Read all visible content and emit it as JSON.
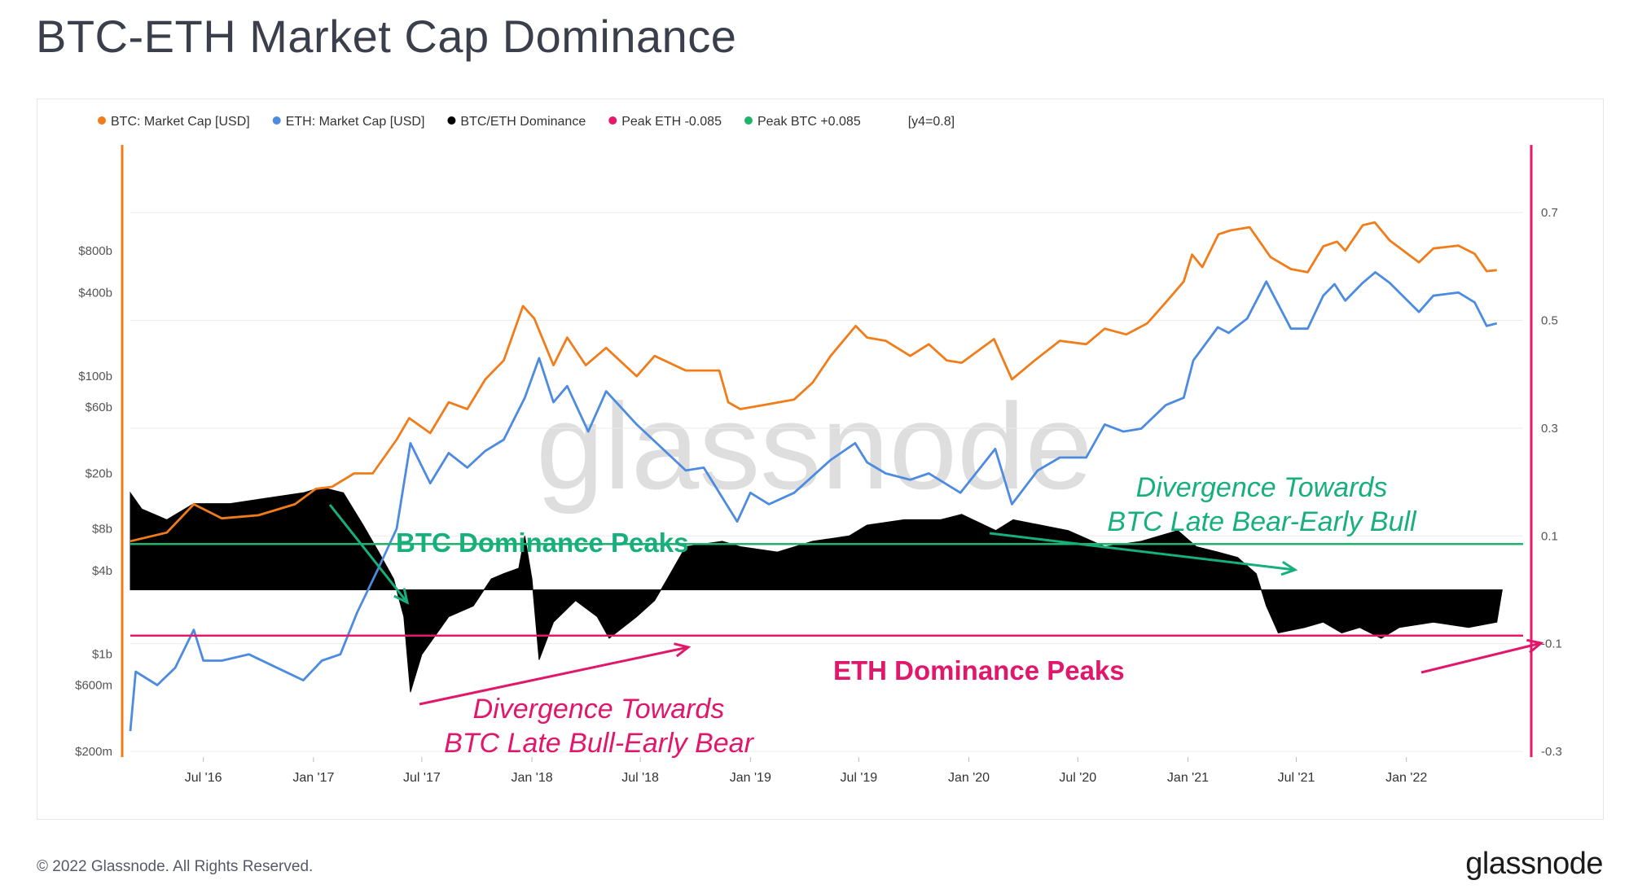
{
  "page": {
    "title": "BTC-ETH Market Cap Dominance",
    "copyright": "© 2022 Glassnode. All Rights Reserved.",
    "logo": "glassnode",
    "watermark": "glassnode"
  },
  "colors": {
    "btc": "#f07d1a",
    "eth": "#4c8be0",
    "dominance": "#000000",
    "peak_eth": "#e8176b",
    "peak_btc": "#1fb36b",
    "annotation_green": "#17b07c",
    "annotation_pink": "#e0176b"
  },
  "chart_data": {
    "type": "line",
    "title": "BTC-ETH Market Cap Dominance",
    "legend_position": "top-left",
    "legend": [
      {
        "label": "BTC: Market Cap [USD]",
        "color": "#f07d1a"
      },
      {
        "label": "ETH: Market Cap [USD]",
        "color": "#4c8be0"
      },
      {
        "label": "BTC/ETH Dominance",
        "color": "#000000"
      },
      {
        "label": "Peak ETH -0.085",
        "color": "#e8176b"
      },
      {
        "label": "Peak BTC +0.085",
        "color": "#1fb36b"
      },
      {
        "label": "[y4=0.8]",
        "color": ""
      }
    ],
    "x_axis": {
      "start": "2016-03-01",
      "end": "2022-07-15",
      "tick_labels": [
        "Jul '16",
        "Jan '17",
        "Jul '17",
        "Jan '18",
        "Jul '18",
        "Jan '19",
        "Jul '19",
        "Jan '20",
        "Jul '20",
        "Jan '21",
        "Jul '21",
        "Jan '22"
      ],
      "tick_dates": [
        "2016-07-01",
        "2017-01-01",
        "2017-07-01",
        "2018-01-01",
        "2018-07-01",
        "2019-01-01",
        "2019-07-01",
        "2020-01-01",
        "2020-07-01",
        "2021-01-01",
        "2021-07-01",
        "2022-01-01"
      ]
    },
    "y_left": {
      "scale": "log",
      "range": [
        200000000,
        2000000000000
      ],
      "ticks": [
        {
          "label": "$800b",
          "value": 800000000000
        },
        {
          "label": "$400b",
          "value": 400000000000
        },
        {
          "label": "$100b",
          "value": 100000000000
        },
        {
          "label": "$60b",
          "value": 60000000000
        },
        {
          "label": "$20b",
          "value": 20000000000
        },
        {
          "label": "$8b",
          "value": 8000000000
        },
        {
          "label": "$4b",
          "value": 4000000000
        },
        {
          "label": "$1b",
          "value": 1000000000
        },
        {
          "label": "$600m",
          "value": 600000000
        },
        {
          "label": "$200m",
          "value": 200000000
        }
      ]
    },
    "y_right": {
      "scale": "linear",
      "range": [
        -0.3,
        0.8
      ],
      "ticks": [
        {
          "label": "0.7",
          "value": 0.7
        },
        {
          "label": "0.5",
          "value": 0.5
        },
        {
          "label": "0.3",
          "value": 0.3
        },
        {
          "label": "0.1",
          "value": 0.1
        },
        {
          "label": "-0.1",
          "value": -0.1
        },
        {
          "label": "-0.3",
          "value": -0.3
        }
      ]
    },
    "reference_lines": [
      {
        "name": "Peak BTC +0.085",
        "value": 0.085,
        "color": "#1fb36b"
      },
      {
        "name": "Peak ETH -0.085",
        "value": -0.085,
        "color": "#e8176b"
      }
    ],
    "series": [
      {
        "name": "BTC: Market Cap [USD]",
        "axis": "left",
        "points": [
          [
            "2016-03-01",
            6500000000.0
          ],
          [
            "2016-05-01",
            7500000000.0
          ],
          [
            "2016-06-15",
            12000000000.0
          ],
          [
            "2016-08-01",
            9500000000.0
          ],
          [
            "2016-10-01",
            10000000000.0
          ],
          [
            "2016-12-01",
            12000000000.0
          ],
          [
            "2017-01-05",
            15500000000.0
          ],
          [
            "2017-02-01",
            16000000000.0
          ],
          [
            "2017-03-10",
            20000000000.0
          ],
          [
            "2017-04-10",
            20000000000.0
          ],
          [
            "2017-05-20",
            35000000000.0
          ],
          [
            "2017-06-10",
            50000000000.0
          ],
          [
            "2017-07-15",
            39000000000.0
          ],
          [
            "2017-08-15",
            65000000000.0
          ],
          [
            "2017-09-15",
            58000000000.0
          ],
          [
            "2017-10-15",
            95000000000.0
          ],
          [
            "2017-11-15",
            130000000000.0
          ],
          [
            "2017-12-17",
            320000000000.0
          ],
          [
            "2018-01-05",
            260000000000.0
          ],
          [
            "2018-02-06",
            120000000000.0
          ],
          [
            "2018-03-01",
            190000000000.0
          ],
          [
            "2018-04-01",
            120000000000.0
          ],
          [
            "2018-05-05",
            160000000000.0
          ],
          [
            "2018-06-25",
            100000000000.0
          ],
          [
            "2018-07-25",
            140000000000.0
          ],
          [
            "2018-09-15",
            110000000000.0
          ],
          [
            "2018-11-10",
            110000000000.0
          ],
          [
            "2018-11-25",
            65000000000.0
          ],
          [
            "2018-12-15",
            58000000000.0
          ],
          [
            "2019-02-01",
            63000000000.0
          ],
          [
            "2019-03-15",
            68000000000.0
          ],
          [
            "2019-04-15",
            90000000000.0
          ],
          [
            "2019-05-15",
            140000000000.0
          ],
          [
            "2019-06-26",
            230000000000.0
          ],
          [
            "2019-07-15",
            190000000000.0
          ],
          [
            "2019-08-15",
            180000000000.0
          ],
          [
            "2019-09-25",
            140000000000.0
          ],
          [
            "2019-10-26",
            170000000000.0
          ],
          [
            "2019-11-25",
            130000000000.0
          ],
          [
            "2019-12-20",
            125000000000.0
          ],
          [
            "2020-02-12",
            185000000000.0
          ],
          [
            "2020-03-13",
            95000000000.0
          ],
          [
            "2020-04-20",
            130000000000.0
          ],
          [
            "2020-06-01",
            180000000000.0
          ],
          [
            "2020-07-15",
            170000000000.0
          ],
          [
            "2020-08-15",
            220000000000.0
          ],
          [
            "2020-09-20",
            200000000000.0
          ],
          [
            "2020-10-25",
            240000000000.0
          ],
          [
            "2020-11-25",
            340000000000.0
          ],
          [
            "2020-12-25",
            480000000000.0
          ],
          [
            "2021-01-08",
            750000000000.0
          ],
          [
            "2021-01-25",
            610000000000.0
          ],
          [
            "2021-02-21",
            1050000000000.0
          ],
          [
            "2021-03-13",
            1120000000000.0
          ],
          [
            "2021-04-14",
            1180000000000.0
          ],
          [
            "2021-05-19",
            720000000000.0
          ],
          [
            "2021-06-22",
            590000000000.0
          ],
          [
            "2021-07-20",
            560000000000.0
          ],
          [
            "2021-08-15",
            860000000000.0
          ],
          [
            "2021-09-07",
            930000000000.0
          ],
          [
            "2021-09-21",
            800000000000.0
          ],
          [
            "2021-10-20",
            1220000000000.0
          ],
          [
            "2021-11-09",
            1280000000000.0
          ],
          [
            "2021-12-04",
            950000000000.0
          ],
          [
            "2022-01-22",
            660000000000.0
          ],
          [
            "2022-02-15",
            830000000000.0
          ],
          [
            "2022-03-29",
            870000000000.0
          ],
          [
            "2022-04-25",
            760000000000.0
          ],
          [
            "2022-05-15",
            570000000000.0
          ],
          [
            "2022-06-01",
            580000000000.0
          ]
        ]
      },
      {
        "name": "ETH: Market Cap [USD]",
        "axis": "left",
        "points": [
          [
            "2016-03-01",
            280000000.0
          ],
          [
            "2016-03-10",
            750000000.0
          ],
          [
            "2016-04-15",
            600000000.0
          ],
          [
            "2016-05-15",
            800000000.0
          ],
          [
            "2016-06-15",
            1500000000.0
          ],
          [
            "2016-07-01",
            900000000.0
          ],
          [
            "2016-08-01",
            900000000.0
          ],
          [
            "2016-09-15",
            1000000000.0
          ],
          [
            "2016-11-01",
            800000000.0
          ],
          [
            "2016-12-15",
            650000000.0
          ],
          [
            "2017-01-15",
            900000000.0
          ],
          [
            "2017-02-15",
            1000000000.0
          ],
          [
            "2017-03-15",
            2000000000.0
          ],
          [
            "2017-04-20",
            4200000000.0
          ],
          [
            "2017-05-20",
            8000000000.0
          ],
          [
            "2017-06-12",
            33000000000.0
          ],
          [
            "2017-07-15",
            17000000000.0
          ],
          [
            "2017-08-15",
            28000000000.0
          ],
          [
            "2017-09-15",
            22000000000.0
          ],
          [
            "2017-10-15",
            29000000000.0
          ],
          [
            "2017-11-15",
            35000000000.0
          ],
          [
            "2017-12-20",
            70000000000.0
          ],
          [
            "2018-01-13",
            135000000000.0
          ],
          [
            "2018-02-06",
            65000000000.0
          ],
          [
            "2018-03-01",
            85000000000.0
          ],
          [
            "2018-04-05",
            40000000000.0
          ],
          [
            "2018-05-05",
            78000000000.0
          ],
          [
            "2018-06-25",
            45000000000.0
          ],
          [
            "2018-08-15",
            28000000000.0
          ],
          [
            "2018-09-15",
            21000000000.0
          ],
          [
            "2018-10-15",
            22000000000.0
          ],
          [
            "2018-12-10",
            9000000000.0
          ],
          [
            "2019-01-01",
            14500000000.0
          ],
          [
            "2019-02-01",
            12000000000.0
          ],
          [
            "2019-03-15",
            14500000000.0
          ],
          [
            "2019-05-15",
            25000000000.0
          ],
          [
            "2019-06-25",
            33000000000.0
          ],
          [
            "2019-07-15",
            24000000000.0
          ],
          [
            "2019-08-15",
            20000000000.0
          ],
          [
            "2019-09-25",
            18000000000.0
          ],
          [
            "2019-10-26",
            20000000000.0
          ],
          [
            "2019-12-18",
            14500000000.0
          ],
          [
            "2020-02-14",
            30000000000.0
          ],
          [
            "2020-03-13",
            12000000000.0
          ],
          [
            "2020-04-25",
            21000000000.0
          ],
          [
            "2020-06-01",
            26000000000.0
          ],
          [
            "2020-07-15",
            26000000000.0
          ],
          [
            "2020-08-15",
            45000000000.0
          ],
          [
            "2020-09-15",
            40000000000.0
          ],
          [
            "2020-10-15",
            42000000000.0
          ],
          [
            "2020-11-25",
            62000000000.0
          ],
          [
            "2020-12-25",
            70000000000.0
          ],
          [
            "2021-01-10",
            130000000000.0
          ],
          [
            "2021-02-20",
            225000000000.0
          ],
          [
            "2021-03-10",
            205000000000.0
          ],
          [
            "2021-04-10",
            260000000000.0
          ],
          [
            "2021-05-12",
            480000000000.0
          ],
          [
            "2021-06-22",
            220000000000.0
          ],
          [
            "2021-07-20",
            220000000000.0
          ],
          [
            "2021-08-15",
            380000000000.0
          ],
          [
            "2021-09-03",
            460000000000.0
          ],
          [
            "2021-09-21",
            350000000000.0
          ],
          [
            "2021-10-20",
            470000000000.0
          ],
          [
            "2021-11-10",
            560000000000.0
          ],
          [
            "2021-12-04",
            470000000000.0
          ],
          [
            "2022-01-22",
            290000000000.0
          ],
          [
            "2022-02-15",
            380000000000.0
          ],
          [
            "2022-03-29",
            400000000000.0
          ],
          [
            "2022-04-25",
            340000000000.0
          ],
          [
            "2022-05-15",
            230000000000.0
          ],
          [
            "2022-06-01",
            240000000000.0
          ]
        ]
      },
      {
        "name": "BTC/ETH Dominance",
        "axis": "right",
        "type": "area",
        "baseline": 0,
        "points": [
          [
            "2016-03-01",
            0.18
          ],
          [
            "2016-03-20",
            0.15
          ],
          [
            "2016-05-01",
            0.13
          ],
          [
            "2016-06-15",
            0.16
          ],
          [
            "2016-08-15",
            0.16
          ],
          [
            "2016-10-15",
            0.17
          ],
          [
            "2016-12-15",
            0.18
          ],
          [
            "2017-01-15",
            0.19
          ],
          [
            "2017-02-20",
            0.18
          ],
          [
            "2017-03-25",
            0.12
          ],
          [
            "2017-04-20",
            0.07
          ],
          [
            "2017-05-15",
            0.02
          ],
          [
            "2017-06-01",
            -0.05
          ],
          [
            "2017-06-12",
            -0.19
          ],
          [
            "2017-07-01",
            -0.12
          ],
          [
            "2017-08-15",
            -0.05
          ],
          [
            "2017-09-25",
            -0.03
          ],
          [
            "2017-10-25",
            0.02
          ],
          [
            "2017-11-15",
            0.03
          ],
          [
            "2017-12-10",
            0.04
          ],
          [
            "2017-12-20",
            0.1
          ],
          [
            "2018-01-01",
            0.02
          ],
          [
            "2018-01-13",
            -0.13
          ],
          [
            "2018-02-06",
            -0.06
          ],
          [
            "2018-03-15",
            -0.02
          ],
          [
            "2018-04-20",
            -0.05
          ],
          [
            "2018-05-10",
            -0.09
          ],
          [
            "2018-06-25",
            -0.05
          ],
          [
            "2018-07-25",
            -0.02
          ],
          [
            "2018-08-15",
            0.02
          ],
          [
            "2018-09-15",
            0.08
          ],
          [
            "2018-11-15",
            0.09
          ],
          [
            "2018-12-15",
            0.08
          ],
          [
            "2019-02-15",
            0.07
          ],
          [
            "2019-04-15",
            0.09
          ],
          [
            "2019-06-15",
            0.1
          ],
          [
            "2019-07-15",
            0.12
          ],
          [
            "2019-09-15",
            0.13
          ],
          [
            "2019-11-15",
            0.13
          ],
          [
            "2019-12-20",
            0.14
          ],
          [
            "2020-02-15",
            0.11
          ],
          [
            "2020-03-15",
            0.13
          ],
          [
            "2020-06-15",
            0.11
          ],
          [
            "2020-08-15",
            0.08
          ],
          [
            "2020-10-15",
            0.09
          ],
          [
            "2020-12-15",
            0.11
          ],
          [
            "2021-01-15",
            0.08
          ],
          [
            "2021-02-20",
            0.07
          ],
          [
            "2021-03-25",
            0.06
          ],
          [
            "2021-04-25",
            0.03
          ],
          [
            "2021-05-12",
            -0.03
          ],
          [
            "2021-06-01",
            -0.08
          ],
          [
            "2021-07-15",
            -0.07
          ],
          [
            "2021-08-15",
            -0.06
          ],
          [
            "2021-09-15",
            -0.08
          ],
          [
            "2021-10-15",
            -0.07
          ],
          [
            "2021-11-20",
            -0.09
          ],
          [
            "2021-12-20",
            -0.07
          ],
          [
            "2022-02-15",
            -0.06
          ],
          [
            "2022-04-15",
            -0.07
          ],
          [
            "2022-06-01",
            -0.06
          ],
          [
            "2022-06-10",
            0.0
          ]
        ]
      }
    ],
    "annotations": [
      {
        "text": "BTC Dominance Peaks",
        "color": "#17b07c"
      },
      {
        "text": "ETH Dominance Peaks",
        "color": "#e0176b"
      },
      {
        "text": "Divergence Towards",
        "text2": "BTC Late Bull-Early Bear",
        "color": "#e0176b"
      },
      {
        "text": "Divergence Towards",
        "text2": "BTC Late Bear-Early Bull",
        "color": "#17b07c"
      }
    ]
  }
}
